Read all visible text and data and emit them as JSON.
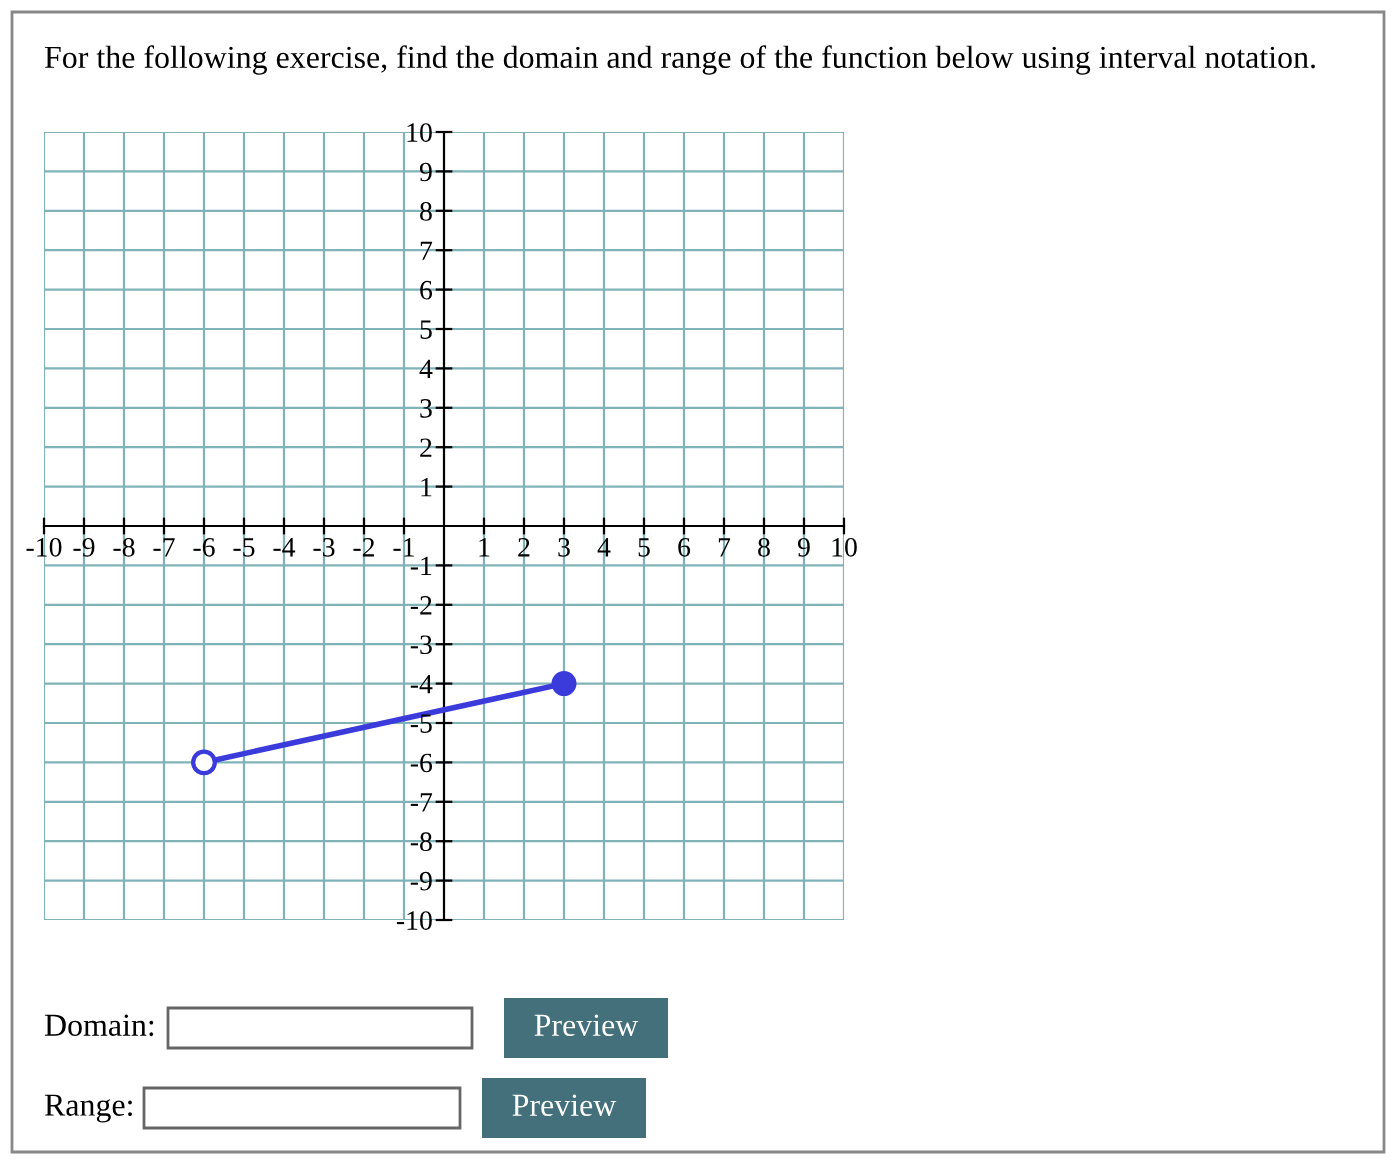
{
  "chart_data": {
    "type": "line",
    "title": "For the following exercise, find the domain and range of the function below using interval notation.",
    "x": [
      -6,
      3
    ],
    "series": [
      {
        "color": "#3b3bdc",
        "values": [
          -6,
          -4
        ],
        "marker": "circle"
      },
      {
        "type": "scatter",
        "color": "#ffffff",
        "values": [
          -6,
          null
        ],
        "marker": "circle"
      }
    ],
    "xlim": [
      -10,
      10
    ],
    "ylim": [
      -10,
      10
    ],
    "xticks": [
      -10,
      -9,
      -8,
      -7,
      -6,
      -5,
      -4,
      -3,
      -2,
      -1,
      1,
      2,
      3,
      4,
      5,
      6,
      7,
      8,
      9,
      10
    ],
    "yticks": [
      -10,
      -9,
      -8,
      -7,
      -6,
      -5,
      -4,
      -3,
      -2,
      -1,
      1,
      2,
      3,
      4,
      5,
      6,
      7,
      8,
      9,
      10
    ],
    "grid": true,
    "annotations": [
      "Domain:",
      "Preview",
      "Range:",
      "Preview"
    ]
  }
}
